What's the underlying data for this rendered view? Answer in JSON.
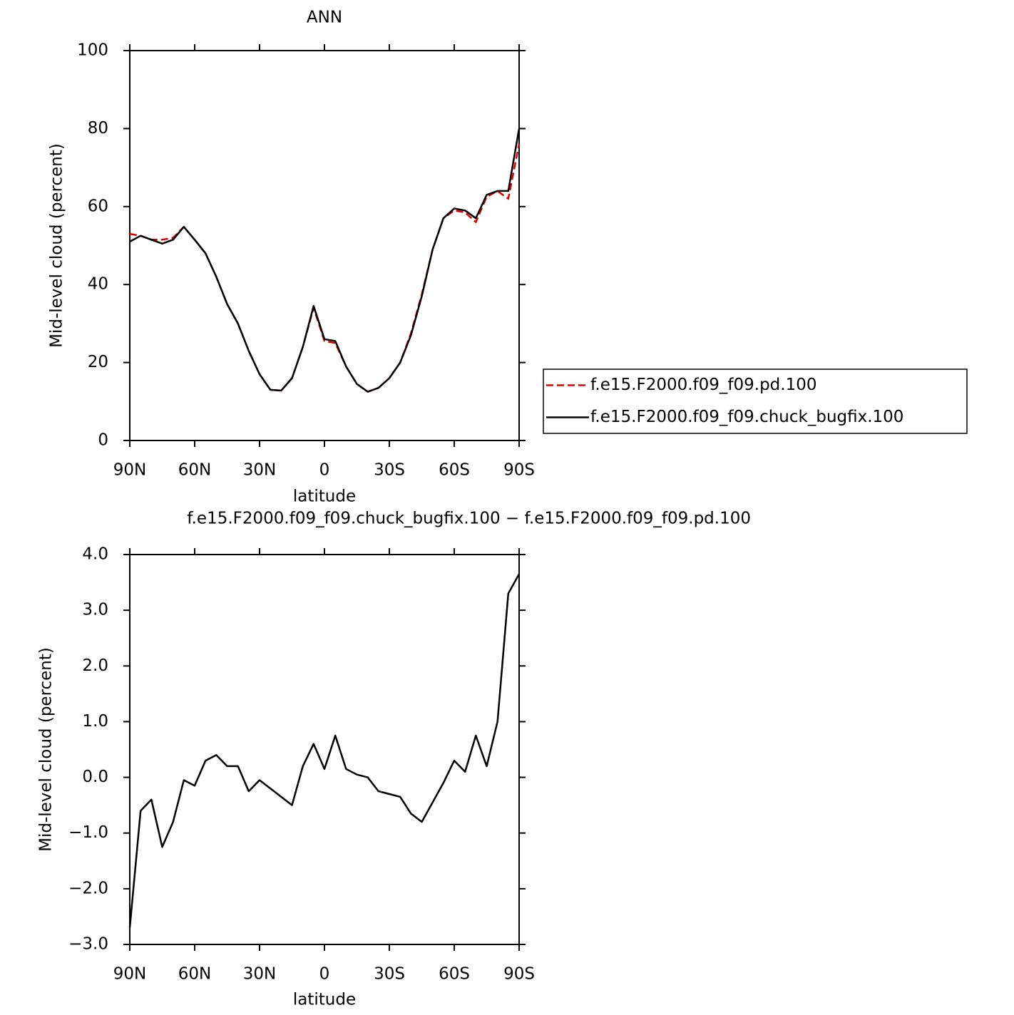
{
  "chart_data": [
    {
      "type": "line",
      "title": "ANN",
      "xlabel": "latitude",
      "ylabel": "Mid-level cloud (percent)",
      "x": [
        90,
        85,
        80,
        75,
        70,
        65,
        60,
        55,
        50,
        45,
        40,
        35,
        30,
        25,
        20,
        15,
        10,
        5,
        0,
        -5,
        -10,
        -15,
        -20,
        -25,
        -30,
        -35,
        -40,
        -45,
        -50,
        -55,
        -60,
        -65,
        -70,
        -75,
        -80,
        -85,
        -90
      ],
      "series": [
        {
          "name": "f.e15.F2000.f09_f09.pd.100",
          "color": "#e00000",
          "dash": true,
          "values": [
            53,
            52.5,
            51.5,
            51.5,
            52,
            54.8,
            51.5,
            48,
            42,
            35,
            30,
            23,
            17,
            13,
            12.8,
            16,
            24,
            34,
            25.5,
            25,
            19,
            14.5,
            12.5,
            13.5,
            16,
            20,
            27.5,
            37.5,
            49,
            57,
            59,
            58.5,
            56,
            62.5,
            64,
            62,
            76
          ]
        },
        {
          "name": "f.e15.F2000.f09_f09.chuck_bugfix.100",
          "color": "#000000",
          "dash": false,
          "values": [
            51,
            52.5,
            51.5,
            50.5,
            51.5,
            54.8,
            51.5,
            48,
            42,
            35,
            30,
            23,
            17,
            13,
            12.8,
            16,
            24,
            34.5,
            26,
            25.5,
            19,
            14.5,
            12.5,
            13.5,
            16,
            20,
            27,
            37,
            49,
            57,
            59.5,
            59,
            57,
            63,
            64,
            64,
            80
          ]
        }
      ],
      "xlim": [
        90,
        -90
      ],
      "xticks": [
        {
          "value": 90,
          "label": "90N"
        },
        {
          "value": 60,
          "label": "60N"
        },
        {
          "value": 30,
          "label": "30N"
        },
        0,
        {
          "value": -30,
          "label": "30S"
        },
        {
          "value": -60,
          "label": "60S"
        },
        {
          "value": -90,
          "label": "90S"
        }
      ],
      "ylim": [
        0,
        100
      ],
      "yticks": [
        0,
        20,
        40,
        60,
        80,
        100
      ],
      "legend": "right"
    },
    {
      "type": "line",
      "title": "f.e15.F2000.f09_f09.chuck_bugfix.100 − f.e15.F2000.f09_f09.pd.100",
      "xlabel": "latitude",
      "ylabel": "Mid-level cloud (percent)",
      "x": [
        90,
        85,
        80,
        75,
        70,
        65,
        60,
        55,
        50,
        45,
        40,
        35,
        30,
        25,
        20,
        15,
        10,
        5,
        0,
        -5,
        -10,
        -15,
        -20,
        -25,
        -30,
        -35,
        -40,
        -45,
        -50,
        -55,
        -60,
        -65,
        -70,
        -75,
        -80,
        -85,
        -90
      ],
      "color": "#000000",
      "values": [
        -2.7,
        -0.6,
        -0.4,
        -1.25,
        -0.8,
        -0.05,
        -0.15,
        0.3,
        0.4,
        0.2,
        0.2,
        -0.25,
        -0.05,
        -0.2,
        -0.35,
        -0.5,
        0.2,
        0.6,
        0.15,
        0.75,
        0.15,
        0.05,
        0.0,
        -0.25,
        -0.3,
        -0.35,
        -0.65,
        -0.8,
        -0.45,
        -0.1,
        0.3,
        0.1,
        0.75,
        0.2,
        1.0,
        3.3,
        3.65
      ],
      "xlim": [
        90,
        -90
      ],
      "xticks": [
        {
          "value": 90,
          "label": "90N"
        },
        {
          "value": 60,
          "label": "60N"
        },
        {
          "value": 30,
          "label": "30N"
        },
        0,
        {
          "value": -30,
          "label": "30S"
        },
        {
          "value": -60,
          "label": "60S"
        },
        {
          "value": -90,
          "label": "90S"
        }
      ],
      "ylim": [
        -3,
        4
      ],
      "yticks": [
        {
          "value": -3,
          "label": "−3.0"
        },
        {
          "value": -2,
          "label": "−2.0"
        },
        {
          "value": -1,
          "label": "−1.0"
        },
        {
          "value": 0,
          "label": "0.0"
        },
        {
          "value": 1,
          "label": "1.0"
        },
        {
          "value": 2,
          "label": "2.0"
        },
        {
          "value": 3,
          "label": "3.0"
        },
        {
          "value": 4,
          "label": "4.0"
        }
      ]
    }
  ]
}
